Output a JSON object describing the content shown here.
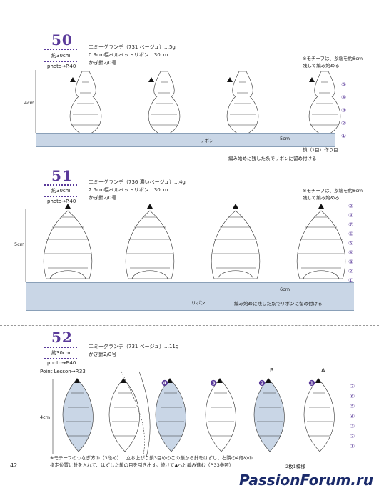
{
  "s50": {
    "number": "50",
    "size": "約30cm",
    "photo": "photo→P.40",
    "materials": [
      "エミーグランデ（731 ベージュ）…5g",
      "0.9cm幅ベルベットリボン…30cm",
      "かぎ針2/0号"
    ],
    "note": [
      "※モチーフは、糸端を約8cm",
      "残して編み始める"
    ],
    "ribbon_label": "リボン",
    "dim_5cm": "5cm",
    "dim_4cm": "4cm",
    "chain_note": "鎖（1目）作り目",
    "bottom_note": "編み始めに残した糸でリボンに留め付ける",
    "rounds": [
      "①",
      "②",
      "③",
      "④",
      "⑤"
    ]
  },
  "s51": {
    "number": "51",
    "size": "約30cm",
    "photo": "photo→P.40",
    "materials": [
      "エミーグランデ（736 濃いベージュ）…4g",
      "2.5cm幅ベルベットリボン…30cm",
      "かぎ針2/0号"
    ],
    "note": [
      "※モチーフは、糸端を約8cm",
      "残して編み始める"
    ],
    "ribbon_label": "リボン",
    "dim_5cm": "5cm",
    "dim_6cm": "6cm",
    "bottom_note": "編み始めに残した糸でリボンに留め付ける",
    "rounds": [
      "①",
      "②",
      "③",
      "④",
      "⑤",
      "⑥",
      "⑦",
      "⑧",
      "⑨"
    ]
  },
  "s52": {
    "number": "52",
    "size": "約30cm",
    "photo": "photo→P.40",
    "point": "Point Lesson→P.33",
    "materials": [
      "エミーグランデ（731 ベージュ）…11g",
      "かぎ針2/0号"
    ],
    "dim_4cm": "4cm",
    "labels": [
      "❹",
      "❸",
      "❷",
      "❶"
    ],
    "label_A": "A",
    "label_B": "B",
    "rounds": [
      "①",
      "②",
      "③",
      "④",
      "⑤",
      "⑥",
      "⑦"
    ],
    "row_note": "2枚1模様",
    "footer": [
      "※モチーフのつなぎ方の（3段め）…立ち上がり鎖3目めのこの鎖から針をはずし、右隣の4段めの",
      "指定位置に針を入れて、はずした鎖の目を引き出す。続けて▲へと編み進む（P.33参照）"
    ]
  },
  "page_number": "42",
  "watermark": "PassionForum.ru"
}
